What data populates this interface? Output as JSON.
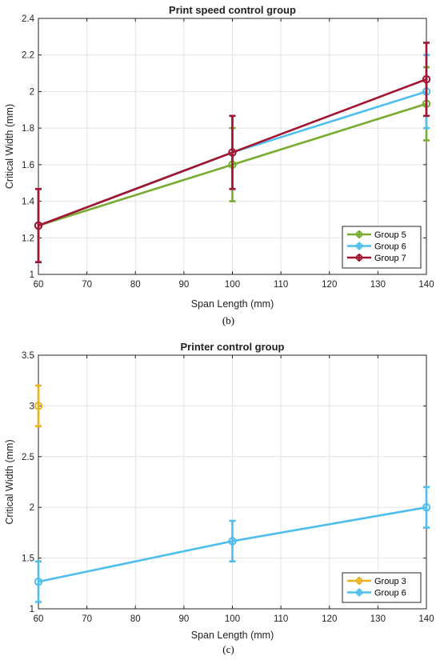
{
  "chart_data": [
    {
      "type": "line",
      "title": "Print speed control group",
      "xlabel": "Span Length (mm)",
      "ylabel": "Critical Width (mm)",
      "caption": "(b)",
      "xlim": [
        60,
        140
      ],
      "ylim": [
        1,
        2.4
      ],
      "xticks": [
        60,
        70,
        80,
        90,
        100,
        110,
        120,
        130,
        140
      ],
      "yticks": [
        1,
        1.2,
        1.4,
        1.6,
        1.8,
        2,
        2.2,
        2.4
      ],
      "ytick_labels": [
        "1",
        "1.2",
        "1.4",
        "1.6",
        "1.8",
        "2",
        "2.2",
        "2.4"
      ],
      "xtick_labels": [
        "60",
        "70",
        "80",
        "90",
        "100",
        "110",
        "120",
        "130",
        "140"
      ],
      "grid": true,
      "legend_position": "bottom-right",
      "series": [
        {
          "name": "Group 5",
          "color": "#77ac30",
          "x": [
            60,
            100,
            140
          ],
          "y": [
            1.267,
            1.6,
            1.933
          ],
          "err": [
            0.2,
            0.2,
            0.2
          ]
        },
        {
          "name": "Group 6",
          "color": "#4dbeee",
          "x": [
            60,
            100,
            140
          ],
          "y": [
            1.267,
            1.667,
            2.0
          ],
          "err": [
            0.2,
            0.2,
            0.2
          ]
        },
        {
          "name": "Group 7",
          "color": "#a2142f",
          "x": [
            60,
            100,
            140
          ],
          "y": [
            1.267,
            1.667,
            2.067
          ],
          "err": [
            0.2,
            0.2,
            0.2
          ]
        }
      ]
    },
    {
      "type": "line",
      "title": "Printer control group",
      "xlabel": "Span Length (mm)",
      "ylabel": "Critical Width (mm)",
      "caption": "(c)",
      "xlim": [
        60,
        140
      ],
      "ylim": [
        1,
        3.5
      ],
      "xticks": [
        60,
        70,
        80,
        90,
        100,
        110,
        120,
        130,
        140
      ],
      "yticks": [
        1,
        1.5,
        2,
        2.5,
        3,
        3.5
      ],
      "ytick_labels": [
        "1",
        "1.5",
        "2",
        "2.5",
        "3",
        "3.5"
      ],
      "xtick_labels": [
        "60",
        "70",
        "80",
        "90",
        "100",
        "110",
        "120",
        "130",
        "140"
      ],
      "grid": true,
      "legend_position": "bottom-right",
      "series": [
        {
          "name": "Group 3",
          "color": "#edb120",
          "x": [
            60
          ],
          "y": [
            3.0
          ],
          "err": [
            0.2
          ]
        },
        {
          "name": "Group 6",
          "color": "#4dbeee",
          "x": [
            60,
            100,
            140
          ],
          "y": [
            1.267,
            1.667,
            2.0
          ],
          "err": [
            0.2,
            0.2,
            0.2
          ]
        }
      ]
    }
  ]
}
